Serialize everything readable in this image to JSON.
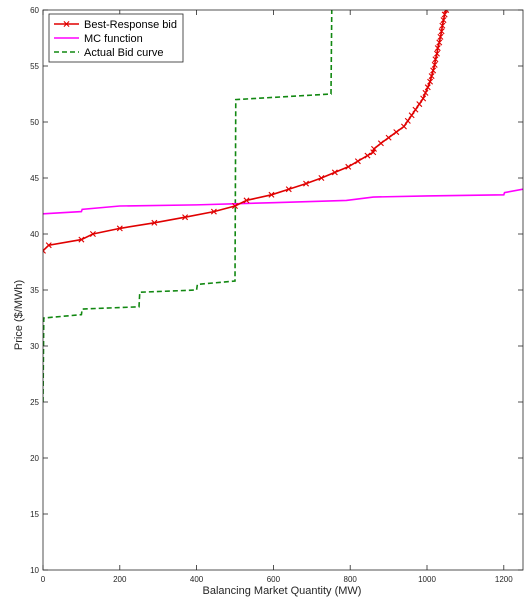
{
  "chart_data": {
    "type": "line",
    "xlabel": "Balancing Market Quantity (MW)",
    "ylabel": "Price ($/MWh)",
    "xlim": [
      0,
      1250
    ],
    "ylim": [
      10,
      60
    ],
    "x_ticks": [
      0,
      200,
      400,
      600,
      800,
      1000,
      1200
    ],
    "y_ticks": [
      10,
      15,
      20,
      25,
      30,
      35,
      40,
      45,
      50,
      55,
      60
    ],
    "grid": false,
    "legend_position": "top-left",
    "series": [
      {
        "name": "Best-Response bid",
        "color": "#e00000",
        "style": "solid",
        "marker": "x",
        "points": [
          [
            0,
            38.5
          ],
          [
            15,
            39.0
          ],
          [
            100,
            39.5
          ],
          [
            130,
            40.0
          ],
          [
            200,
            40.5
          ],
          [
            290,
            41.0
          ],
          [
            370,
            41.5
          ],
          [
            445,
            42.0
          ],
          [
            500,
            42.5
          ],
          [
            530,
            43.0
          ],
          [
            595,
            43.5
          ],
          [
            640,
            44.0
          ],
          [
            685,
            44.5
          ],
          [
            725,
            45.0
          ],
          [
            760,
            45.5
          ],
          [
            795,
            46.0
          ],
          [
            820,
            46.5
          ],
          [
            845,
            47.0
          ],
          [
            860,
            47.3
          ],
          [
            862,
            47.6
          ],
          [
            880,
            48.1
          ],
          [
            900,
            48.6
          ],
          [
            920,
            49.1
          ],
          [
            940,
            49.6
          ],
          [
            950,
            50.1
          ],
          [
            960,
            50.6
          ],
          [
            970,
            51.1
          ],
          [
            980,
            51.6
          ],
          [
            990,
            52.1
          ],
          [
            996,
            52.6
          ],
          [
            1002,
            53.1
          ],
          [
            1008,
            53.6
          ],
          [
            1012,
            54.1
          ],
          [
            1016,
            54.6
          ],
          [
            1020,
            55.1
          ],
          [
            1022,
            55.6
          ],
          [
            1026,
            56.1
          ],
          [
            1028,
            56.6
          ],
          [
            1032,
            57.1
          ],
          [
            1035,
            57.6
          ],
          [
            1038,
            58.1
          ],
          [
            1040,
            58.6
          ],
          [
            1043,
            59.1
          ],
          [
            1046,
            59.6
          ],
          [
            1050,
            60.0
          ]
        ]
      },
      {
        "name": "MC function",
        "color": "#ff00ff",
        "style": "solid",
        "marker": "none",
        "points": [
          [
            0,
            41.8
          ],
          [
            100,
            42.0
          ],
          [
            102,
            42.2
          ],
          [
            200,
            42.5
          ],
          [
            400,
            42.6
          ],
          [
            600,
            42.8
          ],
          [
            790,
            43.0
          ],
          [
            860,
            43.3
          ],
          [
            1000,
            43.4
          ],
          [
            1200,
            43.5
          ],
          [
            1202,
            43.7
          ],
          [
            1250,
            44.0
          ]
        ]
      },
      {
        "name": "Actual Bid curve",
        "color": "#118811",
        "style": "dashed",
        "marker": "none",
        "points": [
          [
            0,
            25.0
          ],
          [
            2,
            32.5
          ],
          [
            100,
            32.8
          ],
          [
            102,
            33.3
          ],
          [
            250,
            33.5
          ],
          [
            252,
            34.8
          ],
          [
            400,
            35.0
          ],
          [
            402,
            35.5
          ],
          [
            500,
            35.8
          ],
          [
            502,
            52.0
          ],
          [
            750,
            52.5
          ],
          [
            752,
            60.0
          ]
        ]
      }
    ]
  }
}
